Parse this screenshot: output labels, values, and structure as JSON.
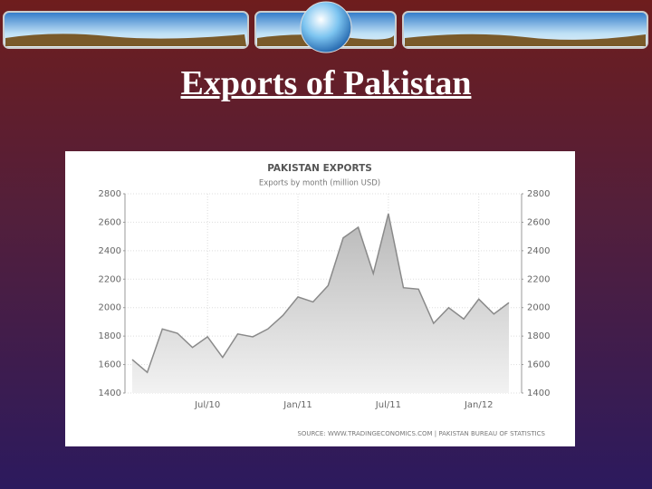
{
  "slide": {
    "title": "Exports of Pakistan"
  },
  "chart_data": {
    "type": "area",
    "title": "PAKISTAN EXPORTS",
    "subtitle": "Exports by month (million USD)",
    "source": "SOURCE: WWW.TRADINGECONOMICS.COM | PAKISTAN BUREAU OF STATISTICS",
    "categories": [
      null,
      null,
      null,
      null,
      null,
      "Jul/10",
      null,
      null,
      null,
      null,
      null,
      "Jan/11",
      null,
      null,
      null,
      null,
      null,
      "Jul/11",
      null,
      null,
      null,
      null,
      null,
      "Jan/12",
      null,
      null
    ],
    "series": [
      {
        "name": "Exports",
        "color": "#8a8a8a",
        "values": [
          1635,
          1545,
          1850,
          1820,
          1720,
          1795,
          1650,
          1815,
          1795,
          1850,
          1945,
          2075,
          2040,
          2155,
          2490,
          2565,
          2240,
          2660,
          2140,
          2130,
          1890,
          2000,
          1920,
          2060,
          1955,
          2035
        ]
      }
    ],
    "ylim": [
      1400,
      2800
    ],
    "yticks": [
      1400,
      1600,
      1800,
      2000,
      2200,
      2400,
      2600,
      2800
    ],
    "grid": true
  }
}
